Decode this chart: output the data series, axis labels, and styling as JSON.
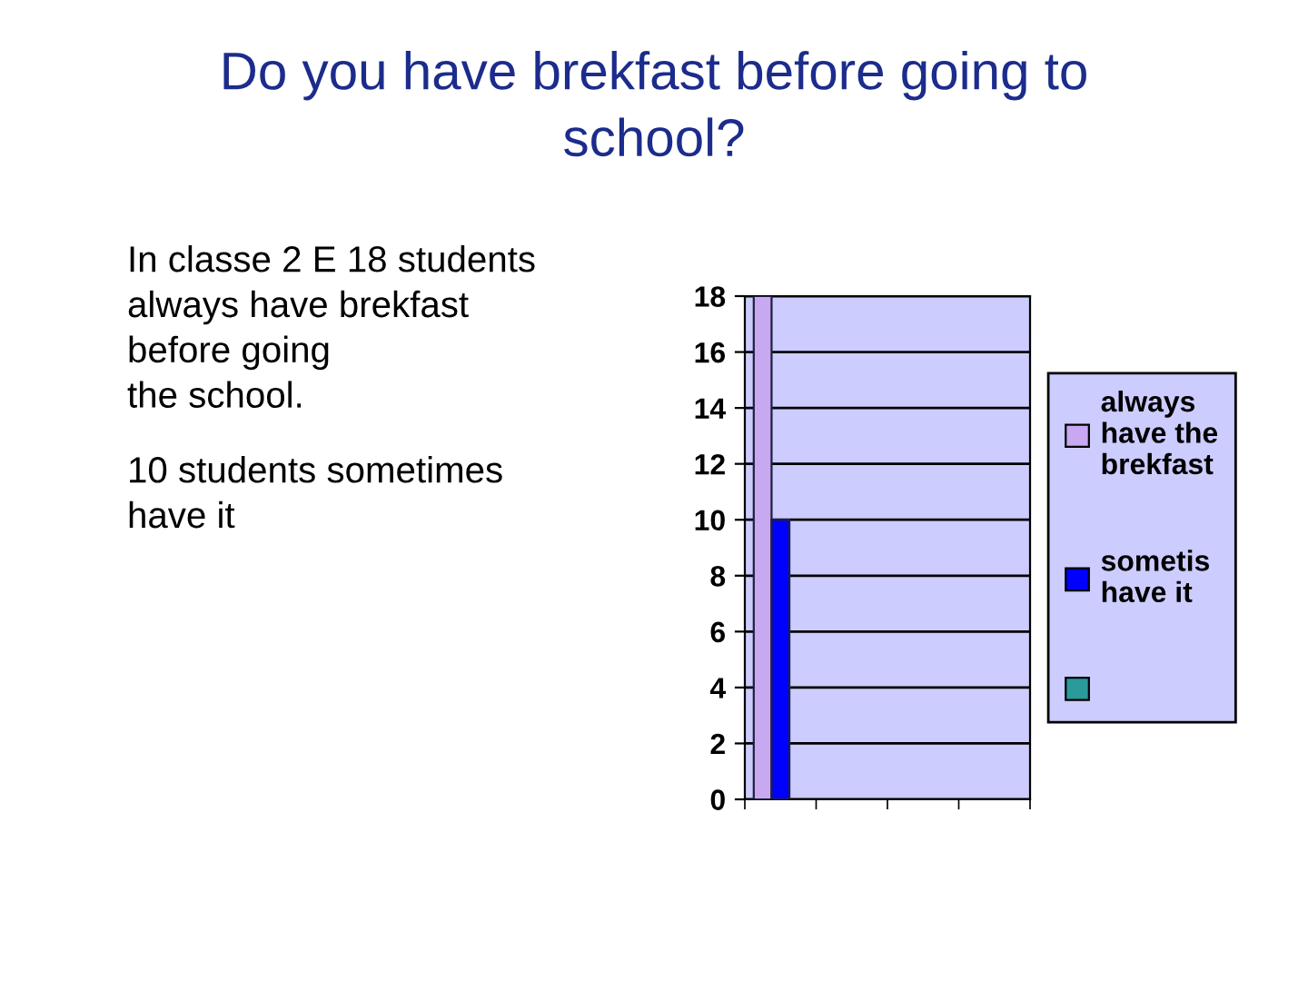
{
  "chart_data": {
    "type": "bar",
    "title": "Do you have brekfast before going to school?",
    "annotations": [
      "In classe 2 E 18 students\nalways have brekfast\nbefore going\nthe school.",
      "10 students sometimes\nhave it"
    ],
    "categories": [
      null,
      null,
      null,
      null
    ],
    "series": [
      {
        "name": "always have the brekfast",
        "color": "#c8a8f0",
        "values": [
          18,
          null,
          null,
          null
        ]
      },
      {
        "name": "sometis have it",
        "color": "#0000ff",
        "values": [
          10,
          null,
          null,
          null
        ]
      },
      {
        "color": "#2a9a9a",
        "values": [
          null,
          null,
          null,
          null
        ]
      }
    ],
    "ylim": [
      0,
      18
    ],
    "yticks": [
      0,
      2,
      4,
      6,
      8,
      10,
      12,
      14,
      16,
      18
    ],
    "grid": "y",
    "legend": "right"
  }
}
